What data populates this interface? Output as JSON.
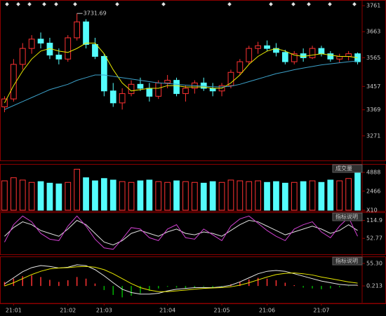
{
  "chart_data": [
    {
      "type": "candlestick",
      "categories": [
        null,
        "21:01",
        null,
        null,
        null,
        null,
        null,
        "21:02",
        null,
        null,
        null,
        "21:03",
        null,
        null,
        null,
        null,
        null,
        null,
        "21:04",
        null,
        null,
        null,
        null,
        null,
        "21:05",
        null,
        null,
        null,
        null,
        "21:06",
        null,
        null,
        null,
        null,
        null,
        "21:07",
        null,
        null,
        null,
        null
      ],
      "open": [
        3380,
        3410,
        3540,
        3600,
        3635,
        3620,
        3575,
        3560,
        3640,
        3700,
        3615,
        3570,
        3440,
        3395,
        3430,
        3465,
        3450,
        3420,
        3470,
        3480,
        3430,
        3450,
        3470,
        3450,
        3440,
        3460,
        3510,
        3550,
        3600,
        3610,
        3600,
        3585,
        3550,
        3580,
        3565,
        3600,
        3580,
        3560,
        3570,
        3580
      ],
      "high": [
        3420,
        3560,
        3620,
        3650,
        3660,
        3640,
        3600,
        3650,
        3731.69,
        3710,
        3640,
        3580,
        3470,
        3450,
        3480,
        3490,
        3470,
        3480,
        3500,
        3490,
        3460,
        3480,
        3490,
        3470,
        3470,
        3520,
        3560,
        3610,
        3625,
        3630,
        3620,
        3595,
        3590,
        3600,
        3610,
        3610,
        3590,
        3580,
        3590,
        3585
      ],
      "low": [
        3360,
        3400,
        3520,
        3580,
        3600,
        3560,
        3540,
        3550,
        3630,
        3600,
        3560,
        3420,
        3380,
        3370,
        3420,
        3440,
        3400,
        3410,
        3450,
        3420,
        3400,
        3430,
        3440,
        3420,
        3420,
        3450,
        3500,
        3540,
        3580,
        3590,
        3570,
        3540,
        3540,
        3550,
        3560,
        3570,
        3550,
        3545,
        3555,
        3540
      ],
      "close": [
        3410,
        3540,
        3600,
        3635,
        3620,
        3575,
        3560,
        3640,
        3700,
        3615,
        3570,
        3440,
        3395,
        3430,
        3465,
        3450,
        3420,
        3470,
        3480,
        3430,
        3450,
        3470,
        3450,
        3440,
        3460,
        3510,
        3550,
        3600,
        3610,
        3600,
        3585,
        3550,
        3580,
        3565,
        3600,
        3580,
        3560,
        3570,
        3580,
        3550
      ],
      "up_color": "#ff3232",
      "down_color": "#54fcfc",
      "series": [
        {
          "color": "#e8e800",
          "values": [
            3395,
            3460,
            3515,
            3560,
            3590,
            3600,
            3590,
            3585,
            3600,
            3620,
            3620,
            3580,
            3520,
            3470,
            3440,
            3445,
            3450,
            3450,
            3460,
            3460,
            3455,
            3455,
            3455,
            3450,
            3450,
            3470,
            3500,
            3540,
            3570,
            3590,
            3600,
            3590,
            3575,
            3570,
            3575,
            3580,
            3575,
            3570,
            3570,
            3565
          ]
        },
        {
          "color": "#3ca0c8",
          "values": [
            3370,
            3385,
            3400,
            3415,
            3430,
            3445,
            3455,
            3465,
            3480,
            3490,
            3500,
            3500,
            3495,
            3490,
            3485,
            3480,
            3475,
            3470,
            3468,
            3465,
            3462,
            3460,
            3458,
            3456,
            3455,
            3458,
            3465,
            3475,
            3485,
            3495,
            3505,
            3512,
            3520,
            3526,
            3532,
            3538,
            3542,
            3546,
            3550,
            3553
          ]
        }
      ],
      "ylim": [
        3181,
        3777
      ],
      "yticks": [
        3271,
        3369,
        3457,
        3565,
        3663,
        3761
      ]
    },
    {
      "type": "bar",
      "title": "成交量",
      "values": [
        3800,
        4200,
        3900,
        3600,
        3700,
        3500,
        3400,
        3600,
        5300,
        4200,
        3800,
        4100,
        3900,
        3700,
        3600,
        3800,
        3900,
        3700,
        3600,
        3800,
        3700,
        3600,
        3500,
        3700,
        3600,
        3900,
        3800,
        3700,
        3800,
        3600,
        3700,
        3500,
        3600,
        3700,
        3800,
        3600,
        3900,
        3800,
        4100,
        4800
      ],
      "up_color": "#ff3232",
      "down_color": "#54fcfc",
      "ylim": [
        0,
        5800
      ],
      "yticks": [
        {
          "value": 0,
          "label": "X10"
        },
        2466,
        4888
      ]
    },
    {
      "type": "line",
      "title": "指标说明",
      "series": [
        {
          "color": "#e0e0e0",
          "values": [
            60,
            90,
            110,
            100,
            80,
            70,
            60,
            85,
            115,
            100,
            70,
            40,
            30,
            45,
            70,
            80,
            70,
            60,
            75,
            85,
            70,
            65,
            75,
            70,
            60,
            80,
            100,
            115,
            110,
            95,
            80,
            65,
            75,
            85,
            95,
            85,
            70,
            80,
            100,
            80
          ]
        },
        {
          "color": "#d040d0",
          "values": [
            40,
            100,
            130,
            110,
            70,
            50,
            45,
            95,
            130,
            95,
            50,
            20,
            15,
            50,
            90,
            85,
            55,
            45,
            85,
            100,
            55,
            50,
            85,
            65,
            45,
            95,
            120,
            130,
            105,
            80,
            60,
            45,
            85,
            100,
            110,
            75,
            55,
            95,
            125,
            60
          ]
        }
      ],
      "ylim": [
        0,
        138
      ],
      "yticks": [
        52.77,
        114.9
      ]
    },
    {
      "type": "macd",
      "title": "指标说明",
      "values": [
        10,
        18,
        24,
        26,
        22,
        15,
        10,
        14,
        22,
        18,
        6,
        -10,
        -22,
        -28,
        -24,
        -18,
        -12,
        -6,
        -2,
        -4,
        -6,
        -4,
        -2,
        -4,
        -2,
        4,
        10,
        16,
        20,
        18,
        14,
        8,
        2,
        -4,
        -6,
        -8,
        -6,
        -3,
        -1,
        1
      ],
      "up_color": "#ff3232",
      "down_color": "#00b000",
      "series": [
        {
          "color": "#e8e8e8",
          "values": [
            5,
            20,
            35,
            45,
            50,
            48,
            44,
            46,
            52,
            50,
            40,
            25,
            8,
            -8,
            -16,
            -20,
            -20,
            -18,
            -12,
            -8,
            -6,
            -4,
            -4,
            -4,
            -2,
            2,
            10,
            20,
            30,
            36,
            38,
            36,
            30,
            24,
            18,
            12,
            8,
            4,
            2,
            2
          ]
        },
        {
          "color": "#e8e800",
          "values": [
            0,
            8,
            18,
            28,
            36,
            42,
            44,
            45,
            47,
            48,
            46,
            40,
            30,
            18,
            6,
            -4,
            -10,
            -14,
            -14,
            -12,
            -10,
            -8,
            -6,
            -5,
            -4,
            -2,
            2,
            8,
            15,
            22,
            28,
            31,
            32,
            30,
            27,
            22,
            18,
            14,
            10,
            7
          ]
        }
      ],
      "ylim": [
        -41,
        69
      ],
      "yticks": [
        0.213,
        {
          "value": 55.3,
          "label": "55.30"
        }
      ]
    }
  ]
}
